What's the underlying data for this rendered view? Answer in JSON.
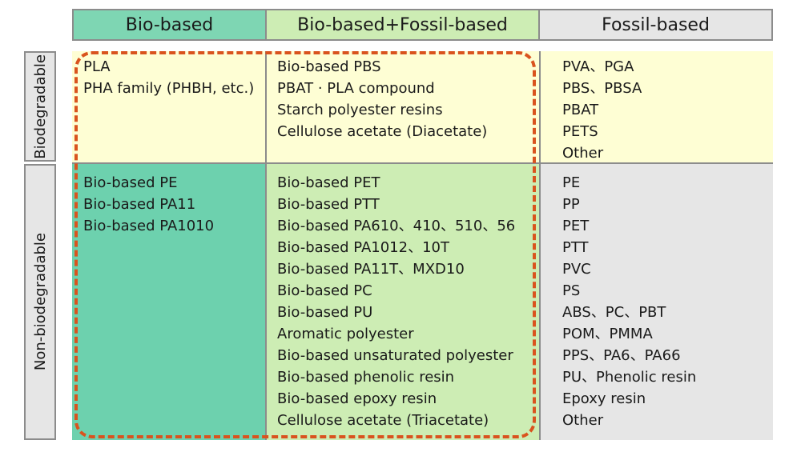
{
  "columns": {
    "bio_based": "Bio-based",
    "bio_fossil": "Bio-based+Fossil-based",
    "fossil_based": "Fossil-based"
  },
  "rows": {
    "biodegradable": "Biodegradable",
    "non_biodegradable": "Non-biodegradable"
  },
  "cells": {
    "biodegradable": {
      "bio_based": [
        "PLA",
        "PHA family (PHBH, etc.)"
      ],
      "bio_fossil": [
        "Bio-based PBS",
        "PBAT · PLA compound",
        "Starch polyester resins",
        "Cellulose acetate (Diacetate)"
      ],
      "fossil_based": [
        "PVA、PGA",
        "PBS、PBSA",
        "PBAT",
        "PETS",
        "Other"
      ]
    },
    "non_biodegradable": {
      "bio_based": [
        "Bio-based PE",
        "Bio-based PA11",
        "Bio-based PA1010"
      ],
      "bio_fossil": [
        "Bio-based PET",
        "Bio-based PTT",
        "Bio-based PA610、410、510、56",
        "Bio-based PA1012、10T",
        "Bio-based PA11T、MXD10",
        "Bio-based PC",
        "Bio-based PU",
        "Aromatic polyester",
        "Bio-based unsaturated polyester",
        "Bio-based phenolic resin",
        "Bio-based epoxy resin",
        "Cellulose acetate (Triacetate)"
      ],
      "fossil_based": [
        "PE",
        "PP",
        "PET",
        "PTT",
        "PVC",
        "PS",
        "ABS、PC、PBT",
        "POM、PMMA",
        "PPS、PA6、PA66",
        "PU、Phenolic resin",
        "Epoxy resin",
        "Other"
      ]
    }
  },
  "colors": {
    "bio_header": "#7ed6b3",
    "mix_header": "#cdedb4",
    "fossil_header": "#e6e6e6",
    "biodegradable_row": "#fefed4",
    "non_bio_bio_cell": "#6dd1ae",
    "non_bio_mix_cell": "#cdedb4",
    "non_bio_fossil_cell": "#e6e6e6",
    "highlight_dash": "#d9531e"
  }
}
